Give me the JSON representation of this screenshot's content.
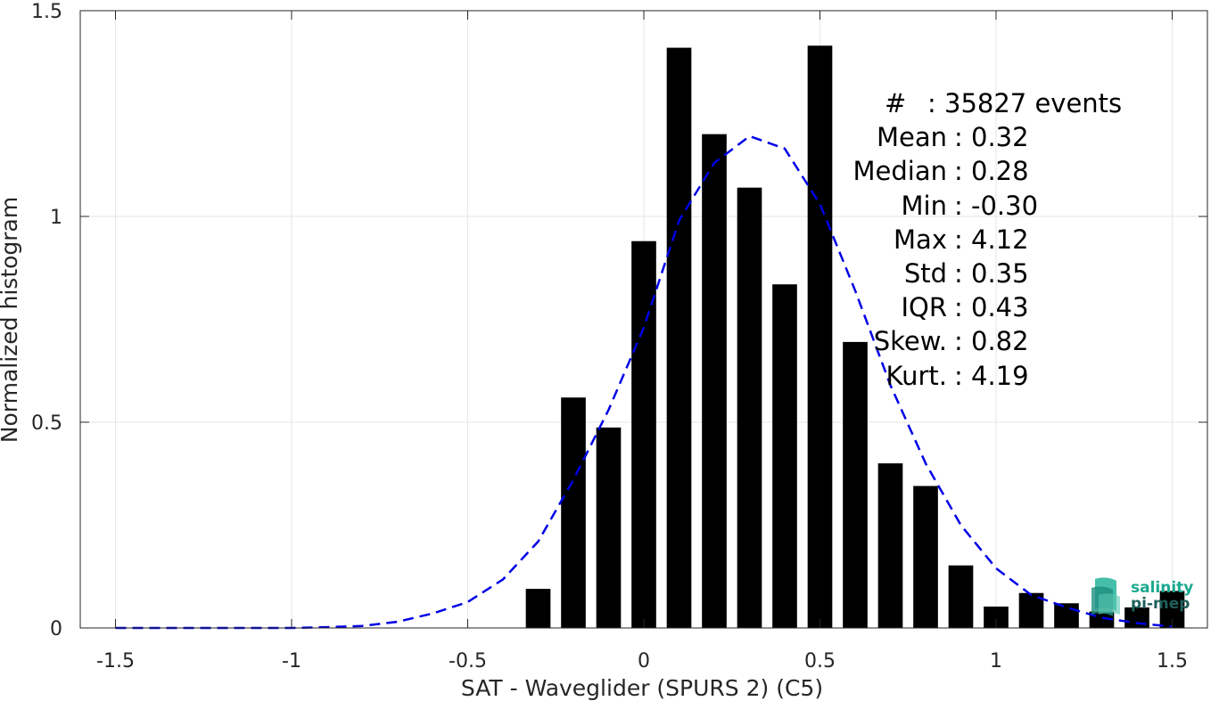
{
  "chart_data": {
    "type": "bar",
    "xlabel": "SAT - Waveglider (SPURS 2) (C5)",
    "ylabel": "Normalized histogram",
    "xlim": [
      -1.6,
      1.6
    ],
    "ylim": [
      0,
      1.5
    ],
    "xticks": [
      -1.5,
      -1,
      -0.5,
      0,
      0.5,
      1,
      1.5
    ],
    "xtick_labels": [
      "-1.5",
      "-1",
      "-0.5",
      "0",
      "0.5",
      "1",
      "1.5"
    ],
    "yticks": [
      0,
      0.5,
      1,
      1.5
    ],
    "ytick_labels": [
      "0",
      "0.5",
      "1",
      "1.5"
    ],
    "grid": true,
    "bar_width": 0.07,
    "bars": [
      {
        "x": -0.3,
        "value": 0.095
      },
      {
        "x": -0.2,
        "value": 0.56
      },
      {
        "x": -0.1,
        "value": 0.487
      },
      {
        "x": 0.0,
        "value": 0.94
      },
      {
        "x": 0.1,
        "value": 1.41
      },
      {
        "x": 0.2,
        "value": 1.2
      },
      {
        "x": 0.3,
        "value": 1.07
      },
      {
        "x": 0.4,
        "value": 0.835
      },
      {
        "x": 0.5,
        "value": 1.415
      },
      {
        "x": 0.6,
        "value": 0.695
      },
      {
        "x": 0.7,
        "value": 0.4
      },
      {
        "x": 0.8,
        "value": 0.345
      },
      {
        "x": 0.9,
        "value": 0.152
      },
      {
        "x": 1.0,
        "value": 0.052
      },
      {
        "x": 1.1,
        "value": 0.085
      },
      {
        "x": 1.2,
        "value": 0.06
      },
      {
        "x": 1.3,
        "value": 0.04
      },
      {
        "x": 1.4,
        "value": 0.05
      },
      {
        "x": 1.5,
        "value": 0.09
      }
    ],
    "fit_curve": {
      "style": "dashed",
      "color": "#0000e6",
      "x": [
        -1.5,
        -1.4,
        -1.3,
        -1.2,
        -1.1,
        -1.0,
        -0.9,
        -0.8,
        -0.7,
        -0.6,
        -0.5,
        -0.4,
        -0.3,
        -0.2,
        -0.1,
        0.0,
        0.1,
        0.2,
        0.3,
        0.4,
        0.5,
        0.6,
        0.7,
        0.8,
        0.9,
        1.0,
        1.1,
        1.2,
        1.3,
        1.4,
        1.5
      ],
      "y": [
        0.0,
        0.0,
        0.0,
        0.0,
        0.0,
        0.0,
        0.002,
        0.005,
        0.015,
        0.035,
        0.063,
        0.118,
        0.21,
        0.36,
        0.53,
        0.73,
        0.99,
        1.13,
        1.195,
        1.165,
        1.03,
        0.82,
        0.59,
        0.4,
        0.25,
        0.145,
        0.08,
        0.05,
        0.025,
        0.012,
        0.003
      ]
    },
    "bar_color": "#000000",
    "annotation_lines": [
      {
        "label": "#",
        "value": ": 35827 events"
      },
      {
        "label": "Mean",
        "value": ": 0.32"
      },
      {
        "label": "Median",
        "value": ": 0.28"
      },
      {
        "label": "Min",
        "value": ": -0.30"
      },
      {
        "label": "Max",
        "value": ": 4.12"
      },
      {
        "label": "Std",
        "value": ": 0.35"
      },
      {
        "label": "IQR",
        "value": ": 0.43"
      },
      {
        "label": "Skew.",
        "value": ": 0.82"
      },
      {
        "label": "Kurt.",
        "value": ": 4.19"
      }
    ],
    "annotation_placement": "top-right"
  },
  "logo": {
    "line1": "salinity",
    "line2": "pi-mep",
    "color1": "#1aa98f",
    "color2": "#1e5f5a"
  }
}
